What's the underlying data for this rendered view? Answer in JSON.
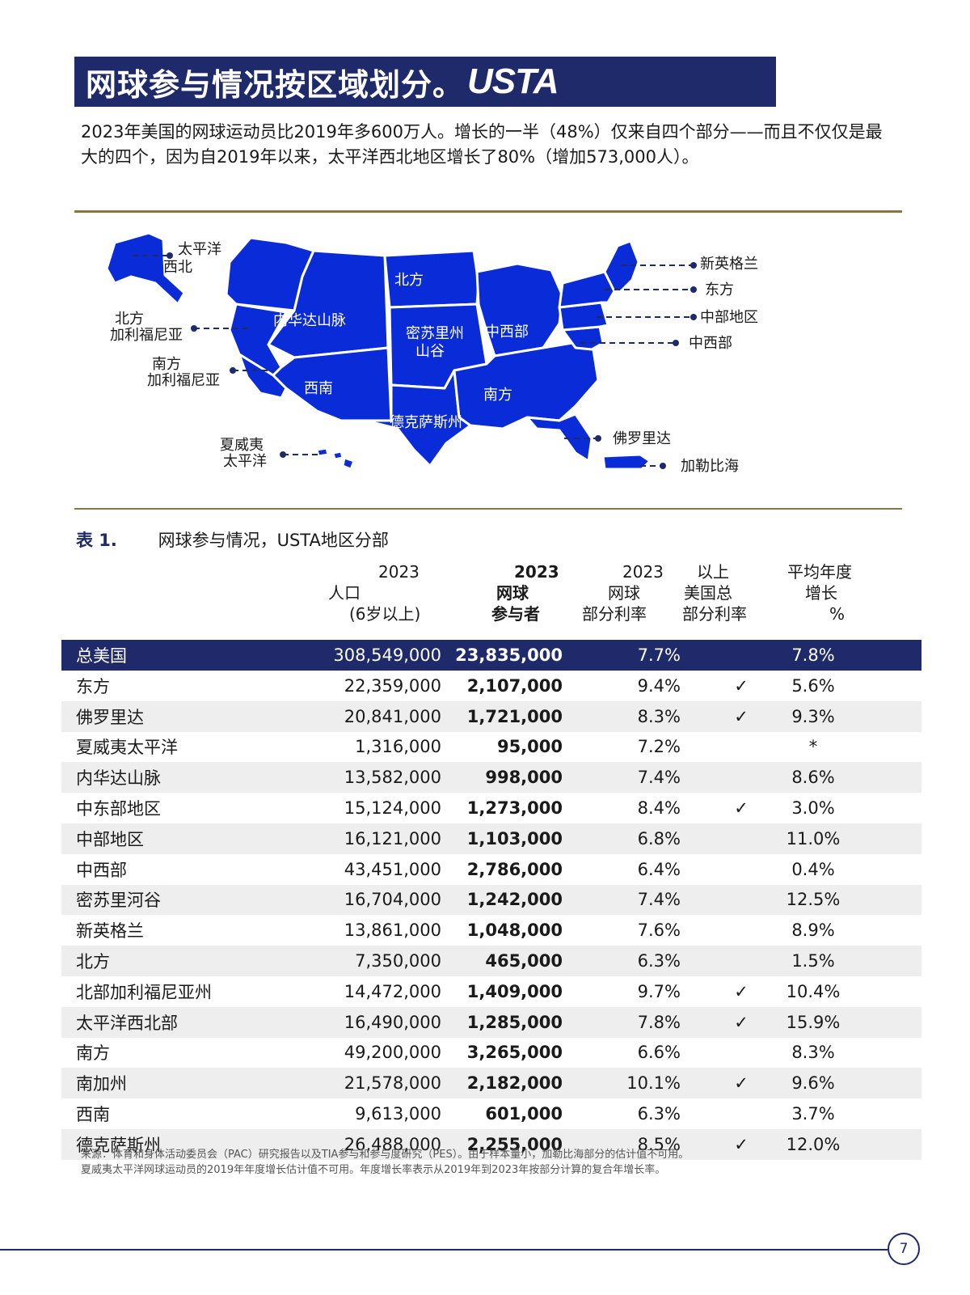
{
  "header": {
    "title": "网球参与情况按区域划分。",
    "logo": "USTA"
  },
  "intro": "2023年美国的网球运动员比2019年多600万人。增长的一半（48%）仅来自四个部分——而且不仅仅是最大的四个，因为自2019年以来，太平洋西北地区增长了80%（增加573,000人）。",
  "map": {
    "labels": {
      "pacific_nw_1": "太平洋",
      "pacific_nw_2": "西北",
      "norcal_1": "北方",
      "norcal_2": "加利福尼亚",
      "socal_1": "南方",
      "socal_2": "加利福尼亚",
      "hawaii_1": "夏威夷",
      "hawaii_2": "太平洋",
      "intermountain": "内华达山脉",
      "southwest": "西南",
      "northern": "北方",
      "missouri_1": "密苏里州",
      "missouri_2": "山谷",
      "midwest_in": "中西部",
      "texas": "德克萨斯州",
      "southern": "南方",
      "new_england": "新英格兰",
      "eastern": "东方",
      "middle_states": "中部地区",
      "mid_atlantic": "中西部",
      "florida": "佛罗里达",
      "caribbean": "加勒比海"
    }
  },
  "table": {
    "number": "表 1.",
    "caption": "网球参与情况，USTA地区分部",
    "headers": {
      "pop_1": "2023",
      "pop_2": "人口",
      "pop_3": "(6岁以上)",
      "part_1": "2023",
      "part_2": "网球",
      "part_3": "参与者",
      "rate_1": "2023",
      "rate_2": "网球",
      "rate_3": "部分利率",
      "above_1": "以上",
      "above_2": "美国总",
      "above_3": "部分利率",
      "growth_1": "平均年度",
      "growth_2": "增长",
      "growth_3": "%"
    },
    "total": {
      "name": "总美国",
      "pop": "308,549,000",
      "part": "23,835,000",
      "rate": "7.7%",
      "check": "",
      "growth": "7.8%"
    },
    "rows": [
      {
        "name": "东方",
        "pop": "22,359,000",
        "part": "2,107,000",
        "rate": "9.4%",
        "check": "✓",
        "growth": "5.6%"
      },
      {
        "name": "佛罗里达",
        "pop": "20,841,000",
        "part": "1,721,000",
        "rate": "8.3%",
        "check": "✓",
        "growth": "9.3%"
      },
      {
        "name": "夏威夷太平洋",
        "pop": "1,316,000",
        "part": "95,000",
        "rate": "7.2%",
        "check": "",
        "growth": "*"
      },
      {
        "name": "内华达山脉",
        "pop": "13,582,000",
        "part": "998,000",
        "rate": "7.4%",
        "check": "",
        "growth": "8.6%"
      },
      {
        "name": "中东部地区",
        "pop": "15,124,000",
        "part": "1,273,000",
        "rate": "8.4%",
        "check": "✓",
        "growth": "3.0%"
      },
      {
        "name": "中部地区",
        "pop": "16,121,000",
        "part": "1,103,000",
        "rate": "6.8%",
        "check": "",
        "growth": "11.0%"
      },
      {
        "name": "中西部",
        "pop": "43,451,000",
        "part": "2,786,000",
        "rate": "6.4%",
        "check": "",
        "growth": "0.4%"
      },
      {
        "name": "密苏里河谷",
        "pop": "16,704,000",
        "part": "1,242,000",
        "rate": "7.4%",
        "check": "",
        "growth": "12.5%"
      },
      {
        "name": "新英格兰",
        "pop": "13,861,000",
        "part": "1,048,000",
        "rate": "7.6%",
        "check": "",
        "growth": "8.9%"
      },
      {
        "name": "北方",
        "pop": "7,350,000",
        "part": "465,000",
        "rate": "6.3%",
        "check": "",
        "growth": "1.5%"
      },
      {
        "name": "北部加利福尼亚州",
        "pop": "14,472,000",
        "part": "1,409,000",
        "rate": "9.7%",
        "check": "✓",
        "growth": "10.4%"
      },
      {
        "name": "太平洋西北部",
        "pop": "16,490,000",
        "part": "1,285,000",
        "rate": "7.8%",
        "check": "✓",
        "growth": "15.9%"
      },
      {
        "name": "南方",
        "pop": "49,200,000",
        "part": "3,265,000",
        "rate": "6.6%",
        "check": "",
        "growth": "8.3%"
      },
      {
        "name": "南加州",
        "pop": "21,578,000",
        "part": "2,182,000",
        "rate": "10.1%",
        "check": "✓",
        "growth": "9.6%"
      },
      {
        "name": "西南",
        "pop": "9,613,000",
        "part": "601,000",
        "rate": "6.3%",
        "check": "",
        "growth": "3.7%"
      },
      {
        "name": "德克萨斯州",
        "pop": "26,488,000",
        "part": "2,255,000",
        "rate": "8.5%",
        "check": "✓",
        "growth": "12.0%"
      }
    ]
  },
  "source": {
    "line1": "来源：体育和身体活动委员会（PAC）研究报告以及TIA参与和参与度研究（PES）。由于样本量小，加勒比海部分的估计值不可用。",
    "line2": "夏威夷太平洋网球运动员的2019年年度增长估计值不可用。年度增长率表示从2019年到2023年按部分计算的复合年增长率。"
  },
  "footer": {
    "page": "7"
  },
  "colors": {
    "navy": "#1f2a6b",
    "map_blue": "#0a2bd8",
    "gold_rule": "#8a7440",
    "row_alt": "#eeeeee"
  }
}
